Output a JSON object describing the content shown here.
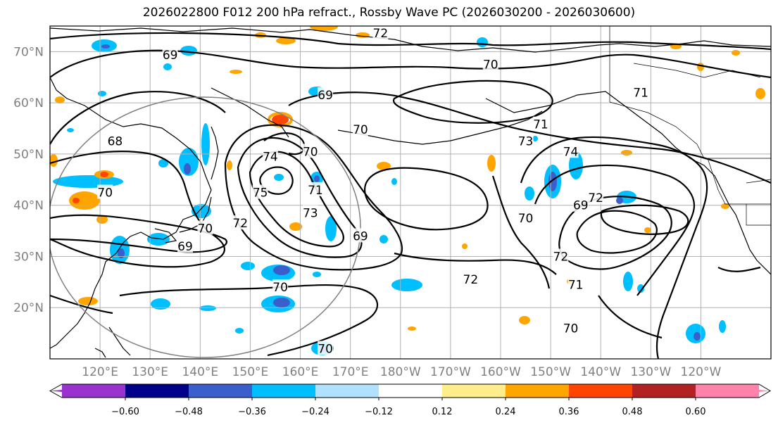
{
  "title": "2026022800 F012 200 hPa refract., Rossby Wave PC (2026030200 - 2026030600)",
  "lat_labels": [
    "70°N",
    "60°N",
    "50°N",
    "40°N",
    "30°N",
    "20°N"
  ],
  "lon_labels": [
    "120°E",
    "130°E",
    "140°E",
    "150°E",
    "160°E",
    "170°E",
    "180°W",
    "170°W",
    "160°W",
    "150°W",
    "140°W",
    "130°W",
    "120°W"
  ],
  "colorbar": {
    "colors": [
      "#9a32cd",
      "#00008b",
      "#3a5fcd",
      "#00bfff",
      "#b0e2ff",
      "#ffffff",
      "#ffec8b",
      "#ffa500",
      "#ff4500",
      "#b22222",
      "#ff82ab"
    ],
    "ticks": [
      "−0.60",
      "−0.48",
      "−0.36",
      "−0.24",
      "−0.12",
      "0.12",
      "0.24",
      "0.36",
      "0.48",
      "0.60"
    ]
  },
  "contour_labels": [
    {
      "text": "72",
      "lat": 73.6,
      "lon": 176
    },
    {
      "text": "69",
      "lat": 69.4,
      "lon": 134
    },
    {
      "text": "70",
      "lat": 67.5,
      "lon": -162
    },
    {
      "text": "69",
      "lat": 61.5,
      "lon": 165
    },
    {
      "text": "71",
      "lat": 62,
      "lon": -132
    },
    {
      "text": "68",
      "lat": 52.5,
      "lon": 123
    },
    {
      "text": "70",
      "lat": 54.8,
      "lon": 172
    },
    {
      "text": "71",
      "lat": 55.8,
      "lon": -152
    },
    {
      "text": "73",
      "lat": 52.5,
      "lon": -155
    },
    {
      "text": "74",
      "lat": 50.5,
      "lon": -146
    },
    {
      "text": "70",
      "lat": 50.5,
      "lon": 162
    },
    {
      "text": "74",
      "lat": 49.5,
      "lon": 154
    },
    {
      "text": "70",
      "lat": 42.5,
      "lon": 121
    },
    {
      "text": "75",
      "lat": 42.5,
      "lon": 152
    },
    {
      "text": "71",
      "lat": 43,
      "lon": 163
    },
    {
      "text": "72",
      "lat": 41.5,
      "lon": -141
    },
    {
      "text": "69",
      "lat": 40,
      "lon": -144
    },
    {
      "text": "73",
      "lat": 38.5,
      "lon": 162
    },
    {
      "text": "70",
      "lat": 37.5,
      "lon": -155
    },
    {
      "text": "72",
      "lat": 36.5,
      "lon": 148
    },
    {
      "text": "70",
      "lat": 35.5,
      "lon": 141
    },
    {
      "text": "69",
      "lat": 34,
      "lon": 172
    },
    {
      "text": "69",
      "lat": 32,
      "lon": 137
    },
    {
      "text": "72",
      "lat": 30,
      "lon": -148
    },
    {
      "text": "72",
      "lat": 25.5,
      "lon": -166
    },
    {
      "text": "71",
      "lat": 24.5,
      "lon": -145
    },
    {
      "text": "70",
      "lat": 24,
      "lon": 156
    },
    {
      "text": "70",
      "lat": 16,
      "lon": -146
    },
    {
      "text": "70",
      "lat": 12,
      "lon": 165
    }
  ]
}
